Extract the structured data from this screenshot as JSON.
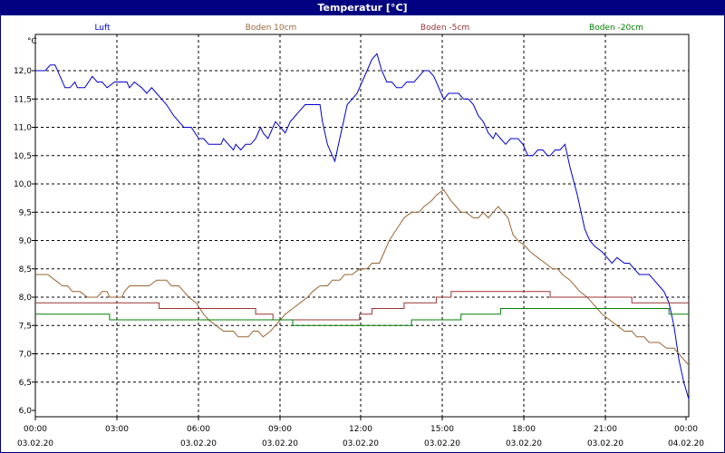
{
  "chart_data": {
    "type": "line",
    "title": "Temperatur [°C]",
    "ylabel": "°C",
    "ylim": [
      6.0,
      12.0
    ],
    "y_ticks": [
      "6,0",
      "6,5",
      "7,0",
      "7,5",
      "8,0",
      "8,5",
      "9,0",
      "9,5",
      "10,0",
      "10,5",
      "11,0",
      "11,5",
      "12,0"
    ],
    "x_range_hours": [
      0,
      24
    ],
    "x_ticks": [
      {
        "time": "00:00",
        "date": "03.02.20"
      },
      {
        "time": "03:00",
        "date": ""
      },
      {
        "time": "06:00",
        "date": "03.02.20"
      },
      {
        "time": "09:00",
        "date": "03.02.20"
      },
      {
        "time": "12:00",
        "date": "03.02.20"
      },
      {
        "time": "15:00",
        "date": "03.02.20"
      },
      {
        "time": "18:00",
        "date": "03.02.20"
      },
      {
        "time": "21:00",
        "date": "03.02.20"
      },
      {
        "time": "00:00",
        "date": "04.02.20"
      }
    ],
    "grid": true,
    "series": [
      {
        "name": "Luft",
        "color": "#0000cc",
        "step": false,
        "points": [
          [
            0,
            12.0
          ],
          [
            0.4,
            12.0
          ],
          [
            0.6,
            12.1
          ],
          [
            0.8,
            12.1
          ],
          [
            1.0,
            11.9
          ],
          [
            1.2,
            11.7
          ],
          [
            1.4,
            11.7
          ],
          [
            1.6,
            11.8
          ],
          [
            1.7,
            11.7
          ],
          [
            2.0,
            11.7
          ],
          [
            2.3,
            11.9
          ],
          [
            2.5,
            11.8
          ],
          [
            2.7,
            11.8
          ],
          [
            2.9,
            11.7
          ],
          [
            3.2,
            11.8
          ],
          [
            3.5,
            11.8
          ],
          [
            3.7,
            11.8
          ],
          [
            3.8,
            11.7
          ],
          [
            4.0,
            11.8
          ],
          [
            4.3,
            11.7
          ],
          [
            4.5,
            11.6
          ],
          [
            4.7,
            11.7
          ],
          [
            4.9,
            11.6
          ],
          [
            5.1,
            11.5
          ],
          [
            5.3,
            11.4
          ],
          [
            5.6,
            11.2
          ],
          [
            5.8,
            11.1
          ],
          [
            6.0,
            11.0
          ],
          [
            6.3,
            11.0
          ],
          [
            6.6,
            10.8
          ],
          [
            6.8,
            10.8
          ],
          [
            7.0,
            10.7
          ],
          [
            7.3,
            10.7
          ],
          [
            7.5,
            10.7
          ],
          [
            7.6,
            10.8
          ],
          [
            7.8,
            10.7
          ],
          [
            8.0,
            10.6
          ],
          [
            8.1,
            10.7
          ],
          [
            8.3,
            10.6
          ],
          [
            8.5,
            10.7
          ],
          [
            8.7,
            10.7
          ],
          [
            8.9,
            10.8
          ],
          [
            9.1,
            11.0
          ],
          [
            9.2,
            10.9
          ],
          [
            9.4,
            10.8
          ],
          [
            9.6,
            11.0
          ],
          [
            9.7,
            11.1
          ],
          [
            9.9,
            11.0
          ],
          [
            10.1,
            10.9
          ],
          [
            10.3,
            11.1
          ],
          [
            10.5,
            11.2
          ],
          [
            10.7,
            11.3
          ],
          [
            10.9,
            11.4
          ],
          [
            11.5,
            11.4
          ],
          [
            11.6,
            11.1
          ],
          [
            11.8,
            10.7
          ],
          [
            12.0,
            10.5
          ],
          [
            12.1,
            10.4
          ],
          [
            12.3,
            10.8
          ],
          [
            12.5,
            11.2
          ],
          [
            12.6,
            11.4
          ],
          [
            12.8,
            11.5
          ],
          [
            13.0,
            11.6
          ],
          [
            13.2,
            11.8
          ],
          [
            13.4,
            12.0
          ],
          [
            13.6,
            12.2
          ],
          [
            13.8,
            12.3
          ],
          [
            14.0,
            12.0
          ],
          [
            14.2,
            11.8
          ],
          [
            14.4,
            11.8
          ],
          [
            14.6,
            11.7
          ],
          [
            14.8,
            11.7
          ],
          [
            15.0,
            11.8
          ],
          [
            15.3,
            11.8
          ],
          [
            15.5,
            11.9
          ],
          [
            15.7,
            12.0
          ],
          [
            15.9,
            12.0
          ],
          [
            16.1,
            11.9
          ],
          [
            16.3,
            11.7
          ],
          [
            16.5,
            11.5
          ],
          [
            16.7,
            11.6
          ],
          [
            17.1,
            11.6
          ],
          [
            17.3,
            11.5
          ],
          [
            17.5,
            11.5
          ],
          [
            17.7,
            11.4
          ],
          [
            17.9,
            11.2
          ],
          [
            18.1,
            11.1
          ],
          [
            18.3,
            10.9
          ],
          [
            18.5,
            10.8
          ],
          [
            18.6,
            10.9
          ],
          [
            18.8,
            10.8
          ],
          [
            19.0,
            10.7
          ],
          [
            19.2,
            10.8
          ],
          [
            19.5,
            10.8
          ],
          [
            19.7,
            10.7
          ],
          [
            19.9,
            10.5
          ],
          [
            20.1,
            10.5
          ],
          [
            20.3,
            10.6
          ],
          [
            20.5,
            10.6
          ],
          [
            20.7,
            10.5
          ],
          [
            20.8,
            10.5
          ],
          [
            21.0,
            10.6
          ],
          [
            21.2,
            10.6
          ],
          [
            21.4,
            10.7
          ],
          [
            21.6,
            10.3
          ],
          [
            21.9,
            9.8
          ],
          [
            22.2,
            9.2
          ],
          [
            22.4,
            9.0
          ],
          [
            22.6,
            8.9
          ],
          [
            22.9,
            8.8
          ],
          [
            23.1,
            8.7
          ],
          [
            23.3,
            8.6
          ],
          [
            23.5,
            8.7
          ],
          [
            23.8,
            8.6
          ],
          [
            24.0,
            8.6
          ],
          [
            24.2,
            8.5
          ],
          [
            24.4,
            8.4
          ],
          [
            24.6,
            8.4
          ],
          [
            24.8,
            8.4
          ],
          [
            25.0,
            8.3
          ],
          [
            25.2,
            8.2
          ],
          [
            25.4,
            8.1
          ],
          [
            25.6,
            7.9
          ],
          [
            25.8,
            7.5
          ],
          [
            26.0,
            6.9
          ],
          [
            26.2,
            6.5
          ],
          [
            26.4,
            6.2
          ]
        ]
      },
      {
        "name": "Boden 10cm",
        "color": "#996633",
        "step": false,
        "points": [
          [
            0,
            8.4
          ],
          [
            0.5,
            8.4
          ],
          [
            0.8,
            8.3
          ],
          [
            1.1,
            8.2
          ],
          [
            1.3,
            8.2
          ],
          [
            1.5,
            8.1
          ],
          [
            1.8,
            8.1
          ],
          [
            2.1,
            8.0
          ],
          [
            2.5,
            8.0
          ],
          [
            2.7,
            8.1
          ],
          [
            2.9,
            8.1
          ],
          [
            3.0,
            8.0
          ],
          [
            3.5,
            8.0
          ],
          [
            3.6,
            8.1
          ],
          [
            3.8,
            8.2
          ],
          [
            4.6,
            8.2
          ],
          [
            4.9,
            8.3
          ],
          [
            5.3,
            8.3
          ],
          [
            5.5,
            8.2
          ],
          [
            5.8,
            8.2
          ],
          [
            6.0,
            8.1
          ],
          [
            6.2,
            8.0
          ],
          [
            6.5,
            7.9
          ],
          [
            6.8,
            7.7
          ],
          [
            7.0,
            7.6
          ],
          [
            7.3,
            7.5
          ],
          [
            7.6,
            7.4
          ],
          [
            8.0,
            7.4
          ],
          [
            8.2,
            7.3
          ],
          [
            8.6,
            7.3
          ],
          [
            8.8,
            7.4
          ],
          [
            9.0,
            7.4
          ],
          [
            9.2,
            7.3
          ],
          [
            9.5,
            7.4
          ],
          [
            9.7,
            7.5
          ],
          [
            9.9,
            7.6
          ],
          [
            10.1,
            7.7
          ],
          [
            10.4,
            7.8
          ],
          [
            10.7,
            7.9
          ],
          [
            11.0,
            8.0
          ],
          [
            11.2,
            8.1
          ],
          [
            11.5,
            8.2
          ],
          [
            11.8,
            8.2
          ],
          [
            12.0,
            8.3
          ],
          [
            12.3,
            8.3
          ],
          [
            12.5,
            8.4
          ],
          [
            12.8,
            8.4
          ],
          [
            13.1,
            8.5
          ],
          [
            13.4,
            8.5
          ],
          [
            13.6,
            8.6
          ],
          [
            13.9,
            8.6
          ],
          [
            14.1,
            8.8
          ],
          [
            14.3,
            9.0
          ],
          [
            14.6,
            9.2
          ],
          [
            14.9,
            9.4
          ],
          [
            15.2,
            9.5
          ],
          [
            15.5,
            9.5
          ],
          [
            15.7,
            9.6
          ],
          [
            16.0,
            9.7
          ],
          [
            16.2,
            9.8
          ],
          [
            16.5,
            9.9
          ],
          [
            16.8,
            9.7
          ],
          [
            17.0,
            9.6
          ],
          [
            17.2,
            9.5
          ],
          [
            17.4,
            9.5
          ],
          [
            17.7,
            9.4
          ],
          [
            17.9,
            9.4
          ],
          [
            18.1,
            9.5
          ],
          [
            18.3,
            9.4
          ],
          [
            18.5,
            9.5
          ],
          [
            18.7,
            9.6
          ],
          [
            18.9,
            9.5
          ],
          [
            19.1,
            9.4
          ],
          [
            19.3,
            9.1
          ],
          [
            19.5,
            9.0
          ],
          [
            19.8,
            8.9
          ],
          [
            20.0,
            8.8
          ],
          [
            20.3,
            8.7
          ],
          [
            20.6,
            8.6
          ],
          [
            20.9,
            8.5
          ],
          [
            21.1,
            8.5
          ],
          [
            21.3,
            8.4
          ],
          [
            21.6,
            8.3
          ],
          [
            21.8,
            8.2
          ],
          [
            22.0,
            8.1
          ],
          [
            22.3,
            8.0
          ],
          [
            22.5,
            7.9
          ],
          [
            22.7,
            7.8
          ],
          [
            22.9,
            7.7
          ],
          [
            23.2,
            7.6
          ],
          [
            23.5,
            7.5
          ],
          [
            23.8,
            7.4
          ],
          [
            24.1,
            7.4
          ],
          [
            24.3,
            7.3
          ],
          [
            24.6,
            7.3
          ],
          [
            24.8,
            7.2
          ],
          [
            25.2,
            7.2
          ],
          [
            25.5,
            7.1
          ],
          [
            25.8,
            7.1
          ],
          [
            26.0,
            7.0
          ],
          [
            26.2,
            6.9
          ],
          [
            26.4,
            6.8
          ]
        ]
      },
      {
        "name": "Boden -5cm",
        "color": "#993333",
        "step": true,
        "points": [
          [
            0,
            7.9
          ],
          [
            5.0,
            7.9
          ],
          [
            5.0,
            7.8
          ],
          [
            8.9,
            7.8
          ],
          [
            8.9,
            7.7
          ],
          [
            9.6,
            7.7
          ],
          [
            9.6,
            7.6
          ],
          [
            13.1,
            7.6
          ],
          [
            13.1,
            7.7
          ],
          [
            13.6,
            7.7
          ],
          [
            13.6,
            7.8
          ],
          [
            14.9,
            7.8
          ],
          [
            14.9,
            7.9
          ],
          [
            16.2,
            7.9
          ],
          [
            16.2,
            8.0
          ],
          [
            16.8,
            8.0
          ],
          [
            16.8,
            8.1
          ],
          [
            20.8,
            8.1
          ],
          [
            20.8,
            8.0
          ],
          [
            24.1,
            8.0
          ],
          [
            24.1,
            7.9
          ],
          [
            26.4,
            7.9
          ]
        ]
      },
      {
        "name": "Boden -20cm",
        "color": "#008000",
        "step": true,
        "points": [
          [
            0,
            7.7
          ],
          [
            3.0,
            7.7
          ],
          [
            3.0,
            7.6
          ],
          [
            10.4,
            7.6
          ],
          [
            10.4,
            7.5
          ],
          [
            15.2,
            7.5
          ],
          [
            15.2,
            7.6
          ],
          [
            17.2,
            7.6
          ],
          [
            17.2,
            7.7
          ],
          [
            18.8,
            7.7
          ],
          [
            18.8,
            7.8
          ],
          [
            25.6,
            7.8
          ],
          [
            25.6,
            7.7
          ],
          [
            26.4,
            7.7
          ]
        ]
      }
    ]
  }
}
